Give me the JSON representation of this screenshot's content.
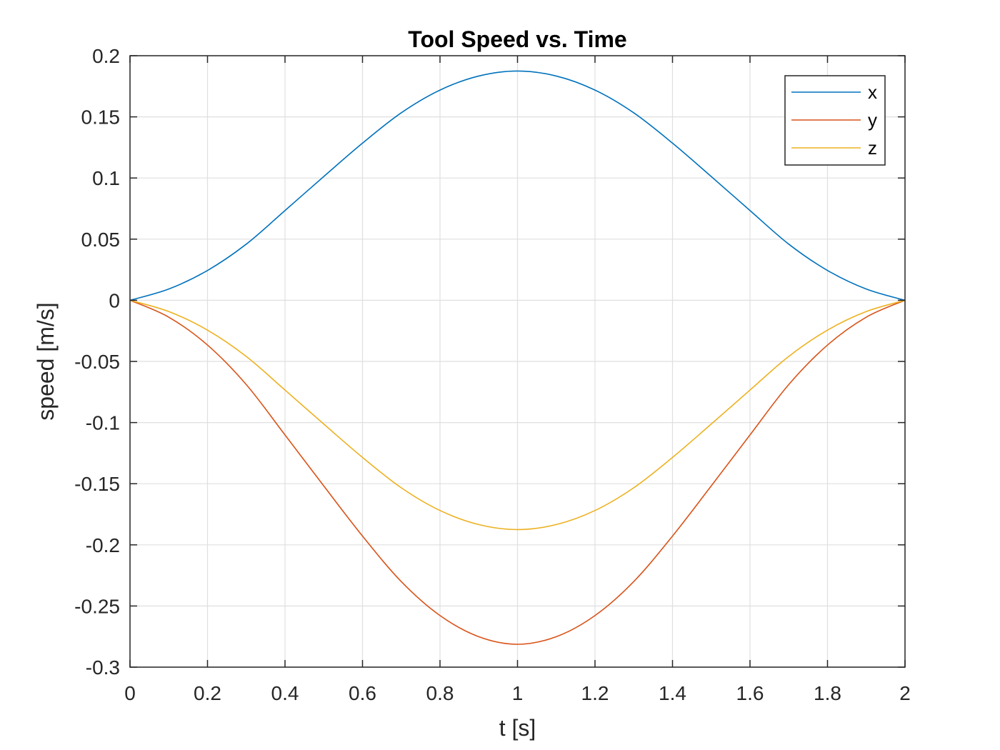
{
  "chart_data": {
    "type": "line",
    "title": "Tool Speed vs. Time",
    "xlabel": "t [s]",
    "ylabel": "speed [m/s]",
    "xlim": [
      0,
      2
    ],
    "ylim": [
      -0.3,
      0.2
    ],
    "xticks": [
      0,
      0.2,
      0.4,
      0.6,
      0.8,
      1,
      1.2,
      1.4,
      1.6,
      1.8,
      2
    ],
    "xtick_labels": [
      "0",
      "0.2",
      "0.4",
      "0.6",
      "0.8",
      "1",
      "1.2",
      "1.4",
      "1.6",
      "1.8",
      "2"
    ],
    "yticks": [
      -0.3,
      -0.25,
      -0.2,
      -0.15,
      -0.1,
      -0.05,
      0,
      0.05,
      0.1,
      0.15,
      0.2
    ],
    "ytick_labels": [
      "-0.3",
      "-0.25",
      "-0.2",
      "-0.15",
      "-0.1",
      "-0.05",
      "0",
      "0.05",
      "0.1",
      "0.15",
      "0.2"
    ],
    "grid": true,
    "legend_position": "top-right",
    "x": [
      0,
      0.1,
      0.2,
      0.3,
      0.4,
      0.5,
      0.6,
      0.7,
      0.8,
      0.9,
      1.0,
      1.1,
      1.2,
      1.3,
      1.4,
      1.5,
      1.6,
      1.7,
      1.8,
      1.9,
      2.0
    ],
    "series": [
      {
        "name": "x",
        "color": "#0072BD",
        "values": [
          0,
          0.0092,
          0.0244,
          0.0459,
          0.0734,
          0.1012,
          0.1285,
          0.1533,
          0.1719,
          0.1834,
          0.1875,
          0.1834,
          0.1719,
          0.1533,
          0.1285,
          0.1012,
          0.0734,
          0.0459,
          0.0244,
          0.0092,
          0
        ]
      },
      {
        "name": "y",
        "color": "#D95319",
        "values": [
          0,
          -0.0138,
          -0.0366,
          -0.0689,
          -0.1101,
          -0.1518,
          -0.1928,
          -0.23,
          -0.2578,
          -0.2751,
          -0.2813,
          -0.2751,
          -0.2578,
          -0.23,
          -0.1928,
          -0.1518,
          -0.1101,
          -0.0689,
          -0.0366,
          -0.0138,
          0
        ]
      },
      {
        "name": "z",
        "color": "#EDB120",
        "values": [
          0,
          -0.0092,
          -0.0244,
          -0.0459,
          -0.0734,
          -0.1012,
          -0.1285,
          -0.1533,
          -0.1719,
          -0.1834,
          -0.1875,
          -0.1834,
          -0.1719,
          -0.1533,
          -0.1285,
          -0.1012,
          -0.0734,
          -0.0459,
          -0.0244,
          -0.0092,
          0
        ]
      }
    ]
  }
}
